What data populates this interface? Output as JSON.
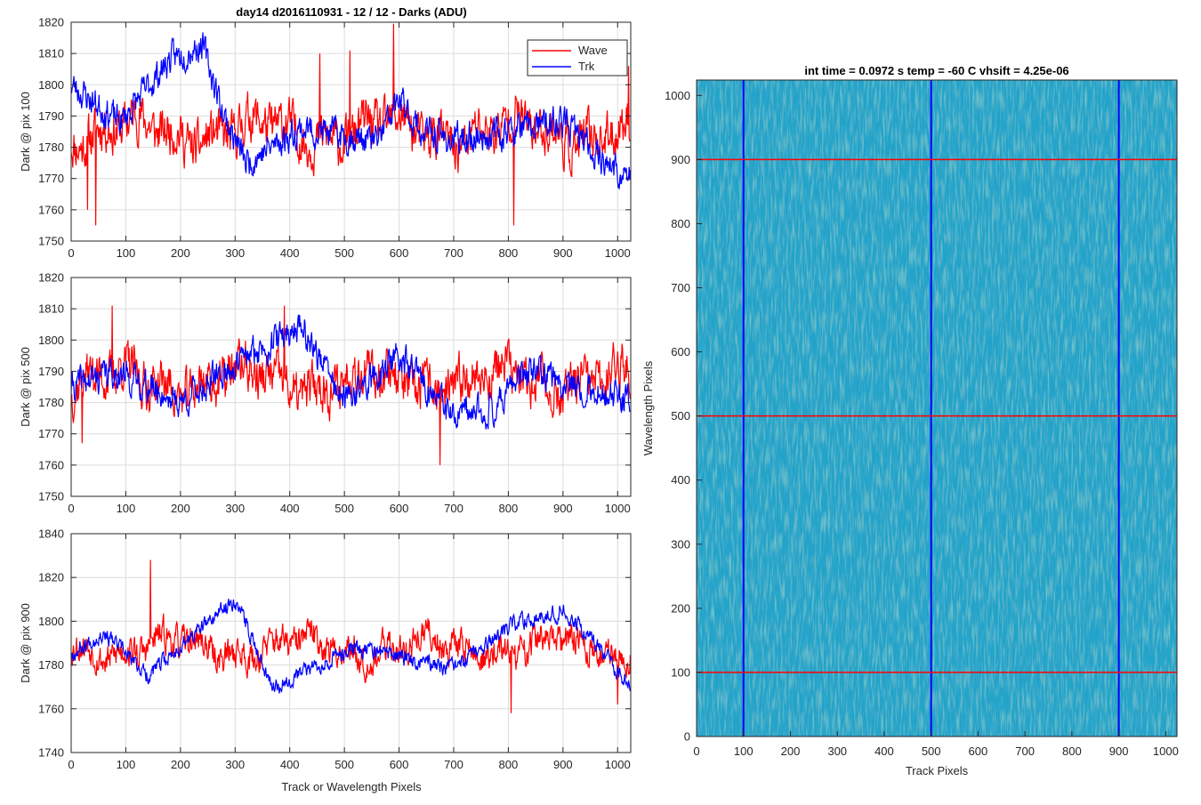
{
  "chart_data": [
    {
      "type": "line",
      "title": "day14 d2016110931 - 12 / 12 - Darks (ADU)",
      "xlabel": "",
      "ylabel": "Dark @ pix 100",
      "xlim": [
        0,
        1024
      ],
      "ylim": [
        1750,
        1820
      ],
      "xticks": [
        0,
        100,
        200,
        300,
        400,
        500,
        600,
        700,
        800,
        900,
        1000
      ],
      "yticks": [
        1750,
        1760,
        1770,
        1780,
        1790,
        1800,
        1810,
        1820
      ],
      "grid": true,
      "legend": {
        "placement": "top-right",
        "entries": [
          "Wave",
          "Trk"
        ]
      },
      "series": [
        {
          "name": "Wave",
          "color": "#ff0000",
          "mean": 1785,
          "amplitude": 7,
          "noise": 6,
          "seed": 11,
          "spikes": [
            [
              30,
              1760
            ],
            [
              45,
              1755
            ],
            [
              590,
              1820
            ],
            [
              810,
              1755
            ],
            [
              455,
              1810
            ],
            [
              510,
              1811
            ],
            [
              1020,
              1806
            ]
          ]
        },
        {
          "name": "Trk",
          "color": "#0000ff",
          "mean": 1785,
          "amplitude": 5,
          "noise": 4,
          "seed": 23,
          "trend": [
            [
              0,
              1800
            ],
            [
              90,
              1788
            ],
            [
              180,
              1808
            ],
            [
              240,
              1813
            ],
            [
              280,
              1790
            ],
            [
              320,
              1775
            ],
            [
              420,
              1786
            ],
            [
              560,
              1782
            ],
            [
              600,
              1795
            ],
            [
              640,
              1785
            ],
            [
              700,
              1782
            ],
            [
              900,
              1788
            ],
            [
              1000,
              1772
            ],
            [
              1024,
              1770
            ]
          ]
        }
      ]
    },
    {
      "type": "line",
      "title": "",
      "xlabel": "",
      "ylabel": "Dark @ pix 500",
      "xlim": [
        0,
        1024
      ],
      "ylim": [
        1750,
        1820
      ],
      "xticks": [
        0,
        100,
        200,
        300,
        400,
        500,
        600,
        700,
        800,
        900,
        1000
      ],
      "yticks": [
        1750,
        1760,
        1770,
        1780,
        1790,
        1800,
        1810,
        1820
      ],
      "grid": true,
      "series": [
        {
          "name": "Wave",
          "color": "#ff0000",
          "mean": 1787,
          "amplitude": 7,
          "noise": 6,
          "seed": 37,
          "spikes": [
            [
              75,
              1811
            ],
            [
              390,
              1811
            ],
            [
              675,
              1760
            ],
            [
              20,
              1767
            ]
          ]
        },
        {
          "name": "Trk",
          "color": "#0000ff",
          "mean": 1785,
          "amplitude": 5,
          "noise": 4,
          "seed": 41,
          "trend": [
            [
              0,
              1785
            ],
            [
              80,
              1790
            ],
            [
              200,
              1780
            ],
            [
              300,
              1792
            ],
            [
              420,
              1805
            ],
            [
              500,
              1780
            ],
            [
              600,
              1795
            ],
            [
              700,
              1775
            ],
            [
              770,
              1778
            ],
            [
              830,
              1790
            ],
            [
              900,
              1787
            ],
            [
              1024,
              1780
            ]
          ]
        }
      ]
    },
    {
      "type": "line",
      "title": "",
      "xlabel": "Track or Wavelength Pixels",
      "ylabel": "Dark @ pix 900",
      "xlim": [
        0,
        1024
      ],
      "ylim": [
        1740,
        1840
      ],
      "xticks": [
        0,
        100,
        200,
        300,
        400,
        500,
        600,
        700,
        800,
        900,
        1000
      ],
      "yticks": [
        1740,
        1760,
        1780,
        1800,
        1820,
        1840
      ],
      "grid": true,
      "series": [
        {
          "name": "Wave",
          "color": "#ff0000",
          "mean": 1788,
          "amplitude": 8,
          "noise": 6,
          "seed": 53,
          "spikes": [
            [
              145,
              1828
            ],
            [
              805,
              1758
            ],
            [
              1000,
              1762
            ]
          ]
        },
        {
          "name": "Trk",
          "color": "#0000ff",
          "mean": 1785,
          "amplitude": 5,
          "noise": 3,
          "seed": 67,
          "trend": [
            [
              0,
              1785
            ],
            [
              60,
              1795
            ],
            [
              140,
              1775
            ],
            [
              230,
              1795
            ],
            [
              300,
              1810
            ],
            [
              370,
              1770
            ],
            [
              450,
              1780
            ],
            [
              520,
              1788
            ],
            [
              640,
              1782
            ],
            [
              700,
              1778
            ],
            [
              820,
              1800
            ],
            [
              900,
              1805
            ],
            [
              960,
              1790
            ],
            [
              1024,
              1770
            ]
          ]
        }
      ]
    },
    {
      "type": "heatmap",
      "title": "int time = 0.0972 s    temp = -60 C    vhsift = 4.25e-06",
      "xlabel": "Track Pixels",
      "ylabel": "Wavelength Pixels",
      "xlim": [
        0,
        1024
      ],
      "ylim": [
        0,
        1024
      ],
      "xticks": [
        0,
        100,
        200,
        300,
        400,
        500,
        600,
        700,
        800,
        900,
        1000
      ],
      "yticks": [
        0,
        100,
        200,
        300,
        400,
        500,
        600,
        700,
        800,
        900,
        1000
      ],
      "colors": {
        "base": "#23a3c9",
        "dark": "#1c86c4",
        "bright": "#6cc28e"
      },
      "vertical_markers": {
        "x": [
          100,
          500,
          900
        ],
        "color": "#0000ff"
      },
      "horizontal_markers": {
        "y": [
          100,
          500,
          900
        ],
        "color": "#ff0000"
      }
    }
  ]
}
